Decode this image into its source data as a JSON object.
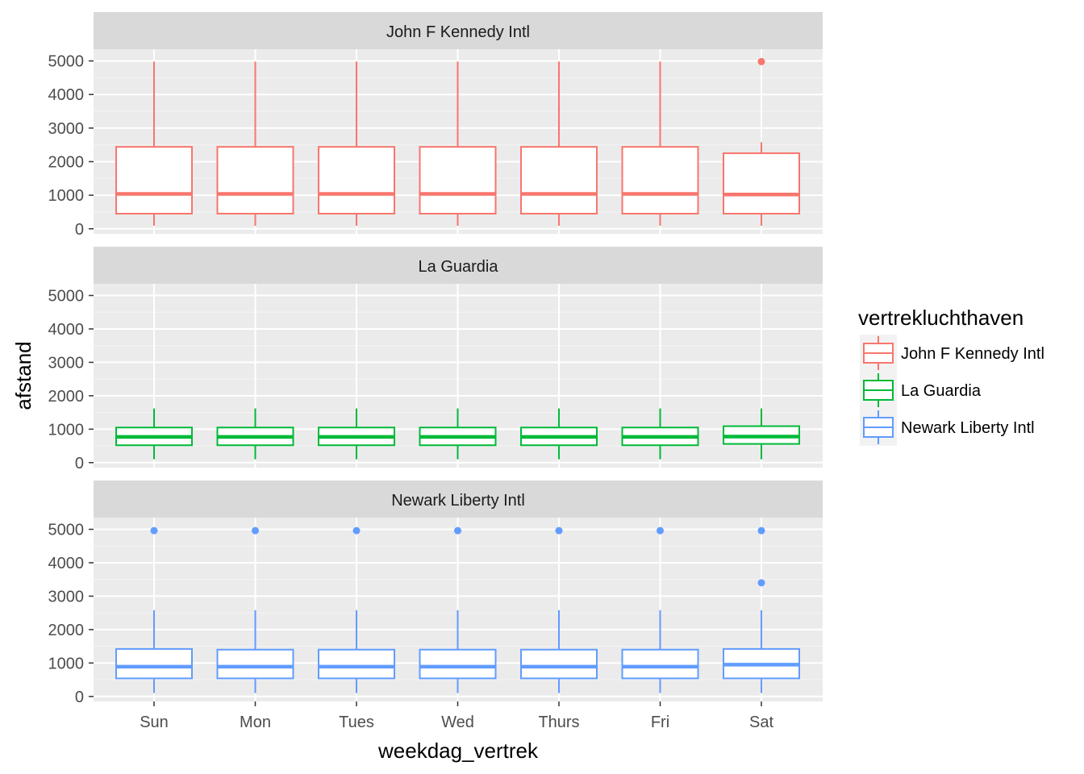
{
  "chart_data": {
    "type": "boxplot",
    "facet_by": "vertrekluchthaven",
    "xlabel": "weekdag_vertrek",
    "ylabel": "afstand",
    "ylim": [
      -150,
      5350
    ],
    "y_ticks": [
      0,
      1000,
      2000,
      3000,
      4000,
      5000
    ],
    "categories": [
      "Sun",
      "Mon",
      "Tues",
      "Wed",
      "Thurs",
      "Fri",
      "Sat"
    ],
    "legend": {
      "title": "vertrekluchthaven",
      "position": "right",
      "entries": [
        {
          "label": "John F Kennedy Intl",
          "color": "#F8766D"
        },
        {
          "label": "La Guardia",
          "color": "#00BA38"
        },
        {
          "label": "Newark Liberty Intl",
          "color": "#619CFF"
        }
      ]
    },
    "panels": [
      {
        "label": "John F Kennedy Intl",
        "color": "#F8766D",
        "boxes": [
          {
            "day": "Sun",
            "lower_whisker": 90,
            "q1": 450,
            "median": 1040,
            "q3": 2440,
            "upper_whisker": 4980,
            "outliers": []
          },
          {
            "day": "Mon",
            "lower_whisker": 90,
            "q1": 450,
            "median": 1040,
            "q3": 2440,
            "upper_whisker": 4980,
            "outliers": []
          },
          {
            "day": "Tues",
            "lower_whisker": 90,
            "q1": 450,
            "median": 1040,
            "q3": 2440,
            "upper_whisker": 4980,
            "outliers": []
          },
          {
            "day": "Wed",
            "lower_whisker": 90,
            "q1": 450,
            "median": 1040,
            "q3": 2440,
            "upper_whisker": 4980,
            "outliers": []
          },
          {
            "day": "Thurs",
            "lower_whisker": 90,
            "q1": 450,
            "median": 1040,
            "q3": 2440,
            "upper_whisker": 4980,
            "outliers": []
          },
          {
            "day": "Fri",
            "lower_whisker": 90,
            "q1": 450,
            "median": 1040,
            "q3": 2440,
            "upper_whisker": 4980,
            "outliers": []
          },
          {
            "day": "Sat",
            "lower_whisker": 90,
            "q1": 450,
            "median": 1020,
            "q3": 2250,
            "upper_whisker": 2580,
            "outliers": [
              4980
            ]
          }
        ]
      },
      {
        "label": "La Guardia",
        "color": "#00BA38",
        "boxes": [
          {
            "day": "Sun",
            "lower_whisker": 100,
            "q1": 520,
            "median": 770,
            "q3": 1050,
            "upper_whisker": 1620,
            "outliers": []
          },
          {
            "day": "Mon",
            "lower_whisker": 100,
            "q1": 520,
            "median": 770,
            "q3": 1050,
            "upper_whisker": 1620,
            "outliers": []
          },
          {
            "day": "Tues",
            "lower_whisker": 100,
            "q1": 520,
            "median": 770,
            "q3": 1050,
            "upper_whisker": 1620,
            "outliers": []
          },
          {
            "day": "Wed",
            "lower_whisker": 100,
            "q1": 520,
            "median": 770,
            "q3": 1050,
            "upper_whisker": 1620,
            "outliers": []
          },
          {
            "day": "Thurs",
            "lower_whisker": 100,
            "q1": 520,
            "median": 770,
            "q3": 1050,
            "upper_whisker": 1620,
            "outliers": []
          },
          {
            "day": "Fri",
            "lower_whisker": 100,
            "q1": 520,
            "median": 770,
            "q3": 1050,
            "upper_whisker": 1620,
            "outliers": []
          },
          {
            "day": "Sat",
            "lower_whisker": 100,
            "q1": 560,
            "median": 780,
            "q3": 1090,
            "upper_whisker": 1620,
            "outliers": []
          }
        ]
      },
      {
        "label": "Newark Liberty Intl",
        "color": "#619CFF",
        "boxes": [
          {
            "day": "Sun",
            "lower_whisker": 100,
            "q1": 540,
            "median": 890,
            "q3": 1420,
            "upper_whisker": 2580,
            "outliers": [
              4960
            ]
          },
          {
            "day": "Mon",
            "lower_whisker": 100,
            "q1": 540,
            "median": 890,
            "q3": 1400,
            "upper_whisker": 2580,
            "outliers": [
              4960
            ]
          },
          {
            "day": "Tues",
            "lower_whisker": 100,
            "q1": 540,
            "median": 890,
            "q3": 1400,
            "upper_whisker": 2580,
            "outliers": [
              4960
            ]
          },
          {
            "day": "Wed",
            "lower_whisker": 100,
            "q1": 540,
            "median": 890,
            "q3": 1400,
            "upper_whisker": 2580,
            "outliers": [
              4960
            ]
          },
          {
            "day": "Thurs",
            "lower_whisker": 100,
            "q1": 540,
            "median": 890,
            "q3": 1400,
            "upper_whisker": 2580,
            "outliers": [
              4960
            ]
          },
          {
            "day": "Fri",
            "lower_whisker": 100,
            "q1": 540,
            "median": 890,
            "q3": 1400,
            "upper_whisker": 2580,
            "outliers": [
              4960
            ]
          },
          {
            "day": "Sat",
            "lower_whisker": 100,
            "q1": 540,
            "median": 950,
            "q3": 1420,
            "upper_whisker": 2580,
            "outliers": [
              3400,
              4960
            ]
          }
        ]
      }
    ]
  }
}
